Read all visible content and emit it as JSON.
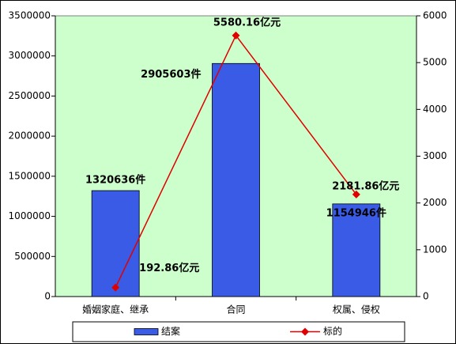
{
  "chart_data": {
    "type": "bar",
    "categories": [
      "婚姻家庭、继承",
      "合同",
      "权属、侵权"
    ],
    "series": [
      {
        "name": "结案",
        "type": "bar",
        "color": "#3a5be6",
        "values": [
          1320636,
          2905603,
          1154946
        ],
        "value_labels": [
          "1320636件",
          "2905603件",
          "1154946件"
        ]
      },
      {
        "name": "标的",
        "type": "line",
        "axis": "y2",
        "color": "#e00000",
        "values": [
          192.86,
          5580.16,
          2181.86
        ],
        "value_labels": [
          "192.86亿元",
          "5580.16亿元",
          "2181.86亿元"
        ]
      }
    ],
    "ylim": [
      0,
      3500000
    ],
    "yticks": [
      0,
      500000,
      1000000,
      1500000,
      2000000,
      2500000,
      3000000,
      3500000
    ],
    "y2lim": [
      0,
      6000
    ],
    "y2ticks": [
      0,
      1000,
      2000,
      3000,
      4000,
      5000,
      6000
    ],
    "legend": "bottom",
    "plot_background": "#ccffcc"
  }
}
